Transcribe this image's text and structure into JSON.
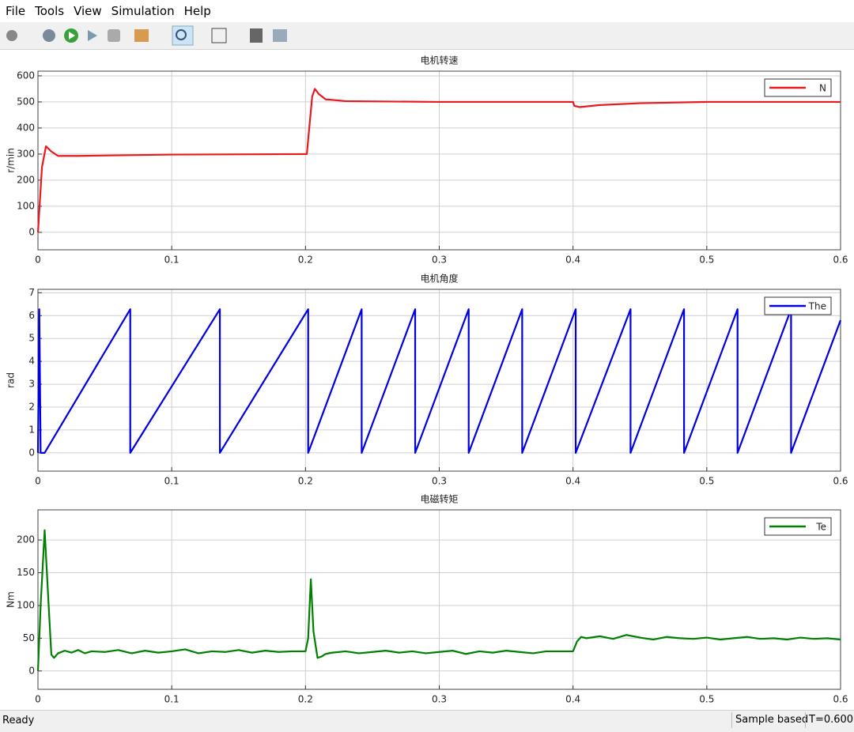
{
  "menu": [
    "File",
    "Tools",
    "View",
    "Simulation",
    "Help"
  ],
  "status": {
    "left": "Ready",
    "mode": "Sample based",
    "time": "T=0.600"
  },
  "chart_data": [
    {
      "type": "line",
      "title": "电机转速",
      "y_label": "r/min",
      "x": [
        0,
        0.003,
        0.006,
        0.01,
        0.015,
        0.03,
        0.1,
        0.2,
        0.201,
        0.205,
        0.207,
        0.21,
        0.215,
        0.23,
        0.3,
        0.4,
        0.401,
        0.405,
        0.42,
        0.45,
        0.5,
        0.6
      ],
      "series": [
        {
          "name": "N",
          "color": "#e8191e",
          "values": [
            0,
            250,
            330,
            310,
            293,
            293,
            298,
            300,
            300,
            520,
            550,
            530,
            510,
            503,
            500,
            500,
            485,
            480,
            488,
            495,
            500,
            500
          ]
        }
      ],
      "xlim": [
        0,
        0.6
      ],
      "xticks": [
        0,
        0.1,
        0.2,
        0.3,
        0.4,
        0.5,
        0.6
      ],
      "ylim": [
        -67,
        618
      ],
      "yticks": [
        0,
        100,
        200,
        300,
        400,
        500,
        600
      ],
      "grid": true,
      "legend": "upper right"
    },
    {
      "type": "line",
      "title": "电机角度",
      "y_label": "rad",
      "x": [
        0,
        0.001,
        0.002,
        0.005,
        0.069,
        0.069,
        0.136,
        0.136,
        0.202,
        0.202,
        0.242,
        0.242,
        0.282,
        0.282,
        0.322,
        0.322,
        0.362,
        0.362,
        0.402,
        0.402,
        0.443,
        0.443,
        0.483,
        0.483,
        0.523,
        0.523,
        0.563,
        0.563,
        0.6
      ],
      "series": [
        {
          "name": "The",
          "color": "#0000e0",
          "values": [
            0,
            6.28,
            0,
            0,
            6.28,
            0,
            6.28,
            0,
            6.28,
            0,
            6.28,
            0,
            6.28,
            0,
            6.28,
            0,
            6.28,
            0,
            6.28,
            0,
            6.28,
            0,
            6.28,
            0,
            6.28,
            0,
            6.28,
            0,
            5.8
          ]
        }
      ],
      "xlim": [
        0,
        0.6
      ],
      "xticks": [
        0,
        0.1,
        0.2,
        0.3,
        0.4,
        0.5,
        0.6
      ],
      "ylim": [
        -0.8,
        7.15
      ],
      "yticks": [
        0,
        1,
        2,
        3,
        4,
        5,
        6,
        7
      ],
      "grid": true,
      "legend": "upper right"
    },
    {
      "type": "line",
      "title": "电磁转矩",
      "y_label": "Nm",
      "x": [
        0,
        0.002,
        0.005,
        0.008,
        0.01,
        0.012,
        0.015,
        0.02,
        0.025,
        0.03,
        0.035,
        0.04,
        0.05,
        0.06,
        0.07,
        0.08,
        0.09,
        0.1,
        0.11,
        0.12,
        0.13,
        0.14,
        0.15,
        0.16,
        0.17,
        0.18,
        0.19,
        0.2,
        0.202,
        0.204,
        0.206,
        0.209,
        0.212,
        0.215,
        0.22,
        0.23,
        0.24,
        0.25,
        0.26,
        0.27,
        0.28,
        0.29,
        0.3,
        0.31,
        0.32,
        0.33,
        0.34,
        0.35,
        0.36,
        0.37,
        0.38,
        0.39,
        0.4,
        0.403,
        0.406,
        0.41,
        0.42,
        0.43,
        0.44,
        0.45,
        0.46,
        0.47,
        0.48,
        0.49,
        0.5,
        0.51,
        0.52,
        0.53,
        0.54,
        0.55,
        0.56,
        0.57,
        0.58,
        0.59,
        0.6
      ],
      "series": [
        {
          "name": "Te",
          "color": "#008000",
          "values": [
            0,
            100,
            215,
            100,
            25,
            20,
            27,
            31,
            28,
            32,
            27,
            30,
            29,
            32,
            27,
            31,
            28,
            30,
            33,
            27,
            30,
            29,
            32,
            28,
            31,
            29,
            30,
            30,
            50,
            140,
            60,
            20,
            22,
            26,
            28,
            30,
            27,
            29,
            31,
            28,
            30,
            27,
            29,
            31,
            26,
            30,
            28,
            31,
            29,
            27,
            30,
            30,
            30,
            45,
            52,
            50,
            53,
            49,
            55,
            51,
            48,
            52,
            50,
            49,
            51,
            48,
            50,
            52,
            49,
            50,
            48,
            51,
            49,
            50,
            48
          ]
        }
      ],
      "xlim": [
        0,
        0.6
      ],
      "xticks": [
        0,
        0.1,
        0.2,
        0.3,
        0.4,
        0.5,
        0.6
      ],
      "ylim": [
        -28,
        246
      ],
      "yticks": [
        0,
        50,
        100,
        150,
        200
      ],
      "grid": true,
      "legend": "upper right"
    }
  ]
}
